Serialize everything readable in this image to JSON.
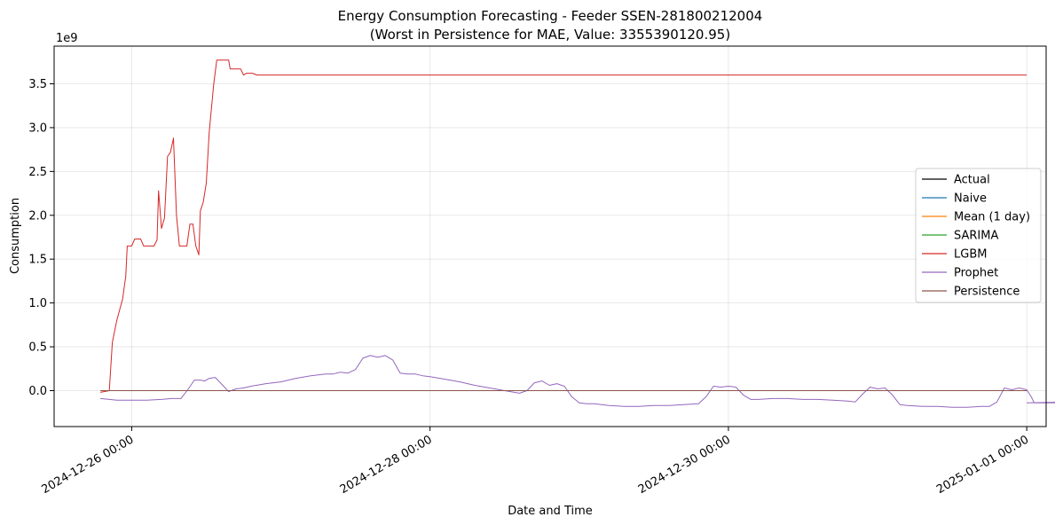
{
  "chart_data": {
    "type": "line",
    "title": "Energy Consumption Forecasting - Feeder SSEN-281800212004",
    "subtitle": "(Worst in Persistence for MAE, Value: 3355390120.95)",
    "xlabel": "Date and Time",
    "ylabel": "Consumption",
    "y_scale_label": "1e9",
    "xlim": [
      -0.52,
      6.13
    ],
    "ylim": [
      -0.41,
      3.93
    ],
    "x_unit": "days since 2024-12-26 00:00",
    "x_ticks": [
      {
        "value": 0,
        "label": "2024-12-26 00:00"
      },
      {
        "value": 2,
        "label": "2024-12-28 00:00"
      },
      {
        "value": 4,
        "label": "2024-12-30 00:00"
      },
      {
        "value": 6,
        "label": "2025-01-01 00:00"
      }
    ],
    "y_ticks": [
      {
        "value": 0.0,
        "label": "0.0"
      },
      {
        "value": 0.5,
        "label": "0.5"
      },
      {
        "value": 1.0,
        "label": "1.0"
      },
      {
        "value": 1.5,
        "label": "1.5"
      },
      {
        "value": 2.0,
        "label": "2.0"
      },
      {
        "value": 2.5,
        "label": "2.5"
      },
      {
        "value": 3.0,
        "label": "3.0"
      },
      {
        "value": 3.5,
        "label": "3.5"
      }
    ],
    "grid": true,
    "legend_position": "center-right",
    "series": [
      {
        "name": "Actual",
        "color": "#000000",
        "points": [
          [
            -0.21,
            0.0
          ],
          [
            6.0,
            0.0
          ]
        ]
      },
      {
        "name": "Naive",
        "color": "#1f77b4",
        "points": [
          [
            -0.21,
            0.0
          ],
          [
            6.0,
            0.0
          ]
        ]
      },
      {
        "name": "Mean (1 day)",
        "color": "#ff7f0e",
        "points": [
          [
            -0.21,
            0.0
          ],
          [
            6.0,
            0.0
          ]
        ]
      },
      {
        "name": "SARIMA",
        "color": "#2ca02c",
        "points": [
          [
            -0.21,
            0.0
          ],
          [
            6.0,
            0.0
          ]
        ]
      },
      {
        "name": "LGBM",
        "color": "#d62728",
        "points": [
          [
            -0.21,
            -0.02
          ],
          [
            -0.15,
            0.0
          ],
          [
            -0.13,
            0.55
          ],
          [
            -0.1,
            0.8
          ],
          [
            -0.06,
            1.05
          ],
          [
            -0.05,
            1.18
          ],
          [
            -0.04,
            1.3
          ],
          [
            -0.03,
            1.65
          ],
          [
            0.0,
            1.65
          ],
          [
            0.02,
            1.73
          ],
          [
            0.06,
            1.73
          ],
          [
            0.08,
            1.65
          ],
          [
            0.15,
            1.65
          ],
          [
            0.17,
            1.72
          ],
          [
            0.18,
            2.28
          ],
          [
            0.2,
            1.85
          ],
          [
            0.22,
            1.97
          ],
          [
            0.24,
            2.67
          ],
          [
            0.26,
            2.72
          ],
          [
            0.28,
            2.88
          ],
          [
            0.3,
            2.0
          ],
          [
            0.32,
            1.65
          ],
          [
            0.37,
            1.65
          ],
          [
            0.39,
            1.9
          ],
          [
            0.41,
            1.9
          ],
          [
            0.43,
            1.65
          ],
          [
            0.45,
            1.55
          ],
          [
            0.46,
            2.05
          ],
          [
            0.48,
            2.15
          ],
          [
            0.5,
            2.37
          ],
          [
            0.52,
            2.95
          ],
          [
            0.55,
            3.5
          ],
          [
            0.57,
            3.77
          ],
          [
            0.65,
            3.77
          ],
          [
            0.66,
            3.67
          ],
          [
            0.73,
            3.67
          ],
          [
            0.75,
            3.6
          ],
          [
            0.77,
            3.62
          ],
          [
            0.81,
            3.62
          ],
          [
            0.84,
            3.6
          ],
          [
            6.0,
            3.6
          ]
        ]
      },
      {
        "name": "Prophet",
        "color": "#9467bd",
        "points": [
          [
            -0.21,
            -0.09
          ],
          [
            -0.15,
            -0.1
          ],
          [
            -0.1,
            -0.11
          ],
          [
            -0.05,
            -0.11
          ],
          [
            0.0,
            -0.11
          ],
          [
            0.1,
            -0.11
          ],
          [
            0.2,
            -0.1
          ],
          [
            0.27,
            -0.09
          ],
          [
            0.33,
            -0.09
          ],
          [
            0.38,
            0.02
          ],
          [
            0.42,
            0.12
          ],
          [
            0.46,
            0.12
          ],
          [
            0.49,
            0.11
          ],
          [
            0.52,
            0.14
          ],
          [
            0.56,
            0.15
          ],
          [
            0.6,
            0.08
          ],
          [
            0.65,
            -0.01
          ],
          [
            0.7,
            0.02
          ],
          [
            0.75,
            0.03
          ],
          [
            0.8,
            0.05
          ],
          [
            0.9,
            0.08
          ],
          [
            1.0,
            0.1
          ],
          [
            1.1,
            0.14
          ],
          [
            1.2,
            0.17
          ],
          [
            1.3,
            0.19
          ],
          [
            1.35,
            0.19
          ],
          [
            1.4,
            0.21
          ],
          [
            1.45,
            0.2
          ],
          [
            1.5,
            0.24
          ],
          [
            1.55,
            0.37
          ],
          [
            1.6,
            0.4
          ],
          [
            1.65,
            0.38
          ],
          [
            1.7,
            0.4
          ],
          [
            1.75,
            0.35
          ],
          [
            1.8,
            0.2
          ],
          [
            1.85,
            0.19
          ],
          [
            1.9,
            0.19
          ],
          [
            1.95,
            0.17
          ],
          [
            2.0,
            0.16
          ],
          [
            2.1,
            0.13
          ],
          [
            2.2,
            0.1
          ],
          [
            2.3,
            0.06
          ],
          [
            2.4,
            0.03
          ],
          [
            2.5,
            0.0
          ],
          [
            2.6,
            -0.03
          ],
          [
            2.65,
            0.0
          ],
          [
            2.7,
            0.09
          ],
          [
            2.75,
            0.11
          ],
          [
            2.8,
            0.06
          ],
          [
            2.85,
            0.08
          ],
          [
            2.9,
            0.05
          ],
          [
            2.95,
            -0.07
          ],
          [
            3.0,
            -0.14
          ],
          [
            3.05,
            -0.15
          ],
          [
            3.1,
            -0.15
          ],
          [
            3.2,
            -0.17
          ],
          [
            3.3,
            -0.18
          ],
          [
            3.4,
            -0.18
          ],
          [
            3.5,
            -0.17
          ],
          [
            3.6,
            -0.17
          ],
          [
            3.7,
            -0.16
          ],
          [
            3.8,
            -0.15
          ],
          [
            3.85,
            -0.07
          ],
          [
            3.9,
            0.05
          ],
          [
            3.95,
            0.04
          ],
          [
            4.0,
            0.05
          ],
          [
            4.05,
            0.04
          ],
          [
            4.1,
            -0.05
          ],
          [
            4.15,
            -0.1
          ],
          [
            4.2,
            -0.1
          ],
          [
            4.3,
            -0.09
          ],
          [
            4.4,
            -0.09
          ],
          [
            4.5,
            -0.1
          ],
          [
            4.6,
            -0.1
          ],
          [
            4.7,
            -0.11
          ],
          [
            4.8,
            -0.12
          ],
          [
            4.85,
            -0.13
          ],
          [
            4.9,
            -0.04
          ],
          [
            4.95,
            0.04
          ],
          [
            5.0,
            0.02
          ],
          [
            5.05,
            0.03
          ],
          [
            5.1,
            -0.05
          ],
          [
            5.15,
            -0.16
          ],
          [
            5.2,
            -0.17
          ],
          [
            5.3,
            -0.18
          ],
          [
            5.4,
            -0.18
          ],
          [
            5.5,
            -0.19
          ],
          [
            5.6,
            -0.19
          ],
          [
            5.7,
            -0.18
          ],
          [
            5.75,
            -0.18
          ],
          [
            5.8,
            -0.13
          ],
          [
            5.85,
            0.03
          ],
          [
            5.9,
            0.01
          ],
          [
            5.95,
            0.03
          ],
          [
            6.0,
            0.01
          ],
          [
            6.03,
            -0.07
          ],
          [
            6.05,
            -0.14
          ],
          [
            6.1,
            -0.14
          ],
          [
            6.2,
            -0.14
          ],
          [
            6.3,
            -0.13
          ],
          [
            6.0,
            -0.14
          ]
        ]
      },
      {
        "name": "Persistence",
        "color": "#8c564b",
        "points": [
          [
            -0.21,
            0.0
          ],
          [
            6.0,
            0.0
          ]
        ]
      }
    ]
  }
}
